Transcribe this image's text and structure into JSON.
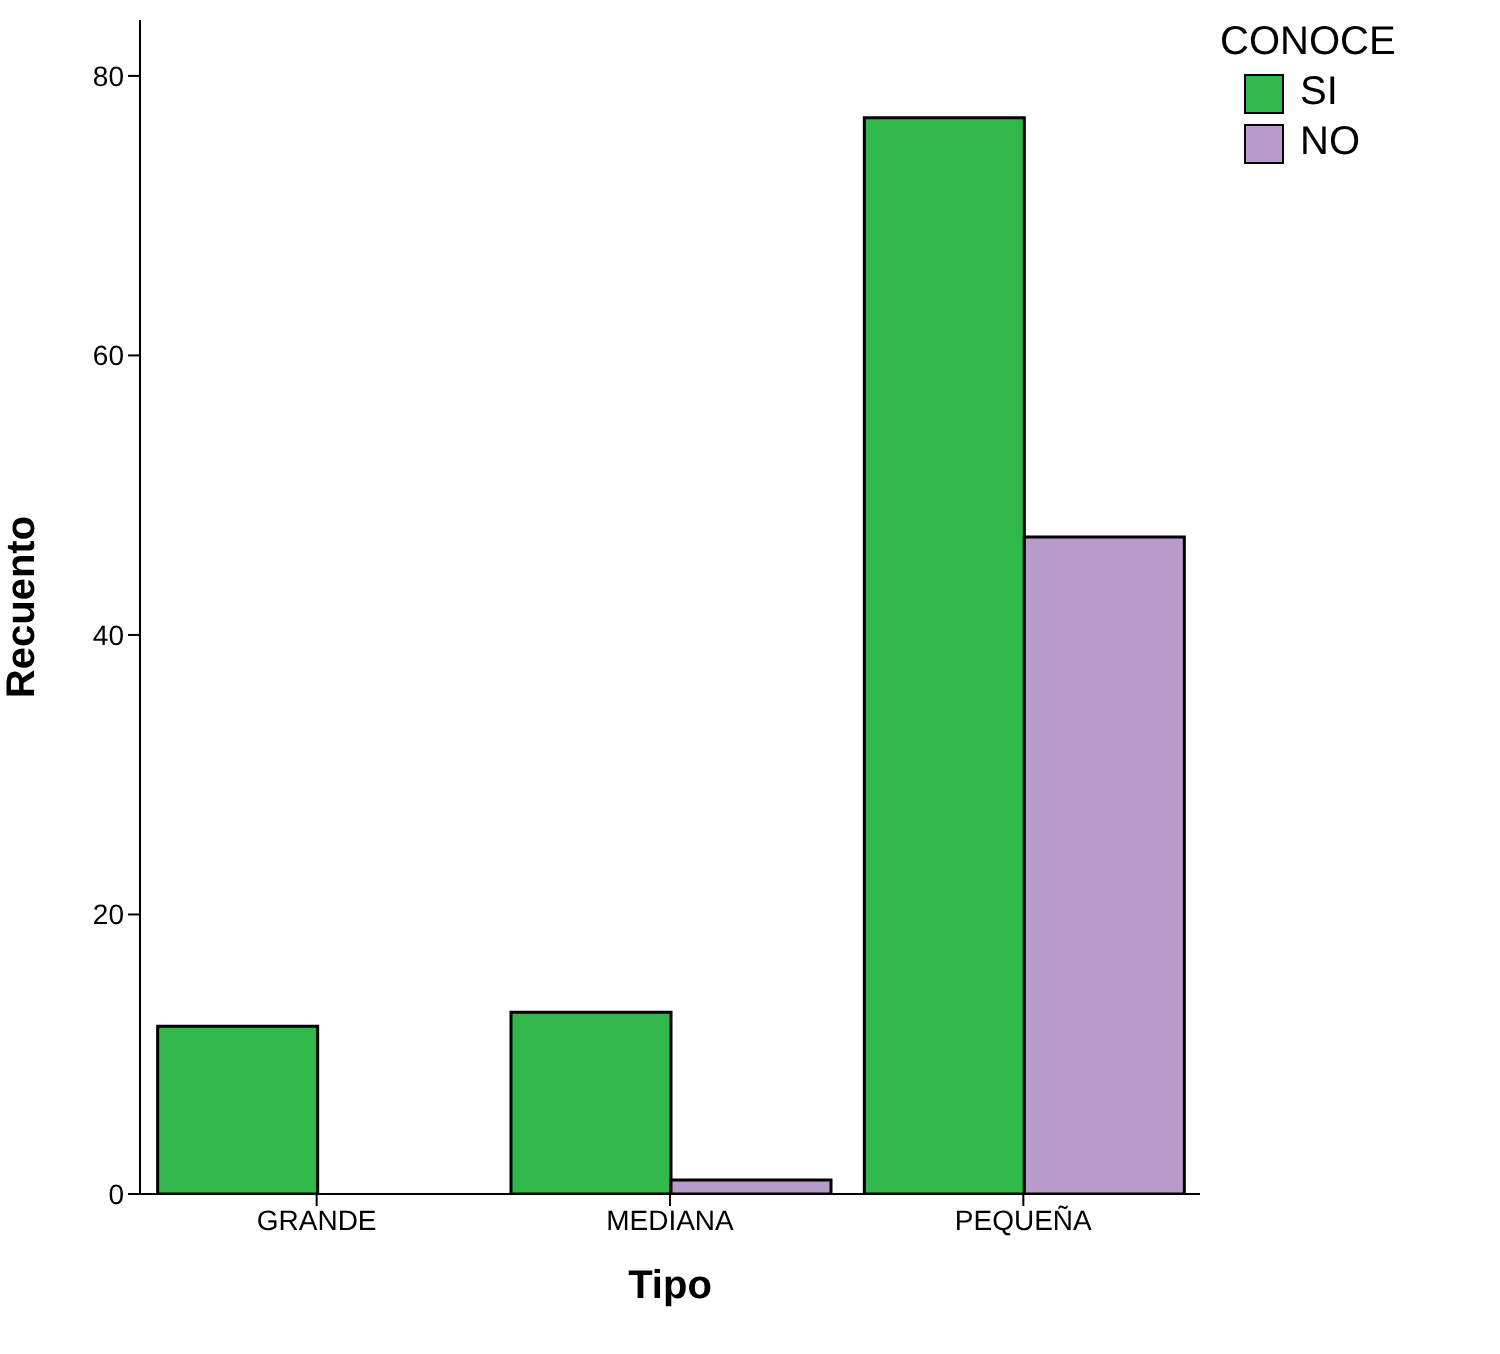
{
  "chart_data": {
    "type": "bar",
    "xlabel": "Tipo",
    "ylabel": "Recuento",
    "legend_title": "CONOCE",
    "categories": [
      "GRANDE",
      "MEDIANA",
      "PEQUEÑA"
    ],
    "series": [
      {
        "name": "SI",
        "color": "#31b84a",
        "values": [
          12,
          13,
          77
        ]
      },
      {
        "name": "NO",
        "color": "#b99bcb",
        "values": [
          0,
          1,
          47
        ]
      }
    ],
    "ylim": [
      0,
      84
    ],
    "yticks": [
      0,
      20,
      40,
      60,
      80
    ],
    "grid": false,
    "legend": "top right"
  }
}
